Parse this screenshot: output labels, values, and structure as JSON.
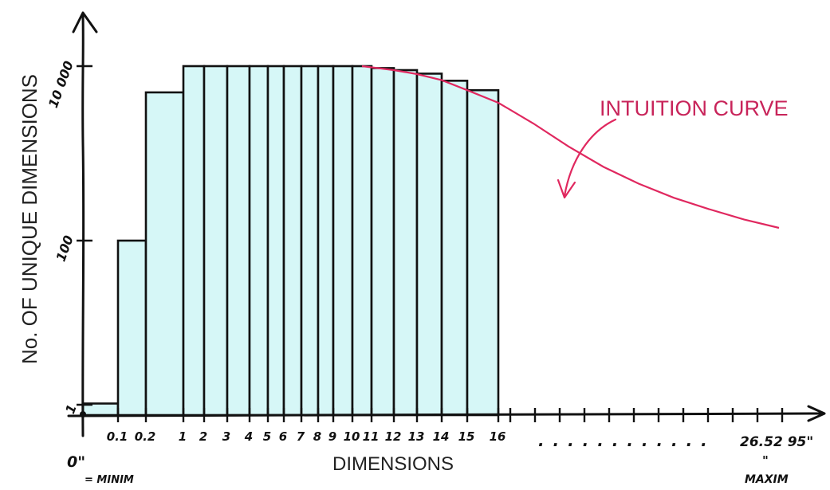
{
  "chart_data": {
    "type": "bar",
    "title": "",
    "xlabel": "DIMENSIONS",
    "ylabel": "No. OF UNIQUE DIMENSIONS",
    "y_scale": "log",
    "y_ticks": [
      {
        "value": 1,
        "label": "1"
      },
      {
        "value": 100,
        "label": "100"
      },
      {
        "value": 10000,
        "label": "10 000"
      }
    ],
    "categories": [
      "0\"",
      "0.1",
      "0.2",
      "1",
      "2",
      "3",
      "4",
      "5",
      "6",
      "7",
      "8",
      "9",
      "10",
      "11",
      "12",
      "13",
      "14",
      "15",
      "16"
    ],
    "values": [
      1.1,
      100,
      5000,
      10000,
      10000,
      10000,
      10000,
      10000,
      10000,
      10000,
      10000,
      10000,
      10000,
      9500,
      9000,
      8200,
      6800,
      5300,
      3700
    ],
    "x_labels": {
      "min": "0\"",
      "min_note": "= MINIM",
      "max": "26.52 95\"",
      "max_quote": "\"",
      "max_note": "MAXIM",
      "ellipsis": ". . . . . . . . . . . ."
    },
    "intuition_curve": {
      "label": "INTUITION CURVE",
      "x": [
        10.5,
        12,
        13,
        14,
        15,
        16,
        17,
        18,
        19,
        20,
        21,
        22,
        23,
        24
      ],
      "y": [
        10000,
        9000,
        8100,
        6900,
        5300,
        3800,
        2200,
        1200,
        700,
        450,
        310,
        230,
        175,
        140
      ]
    },
    "colors": {
      "bar_fill": "#d6f7f7",
      "bar_stroke": "#111111",
      "curve": "#e0285f"
    }
  }
}
